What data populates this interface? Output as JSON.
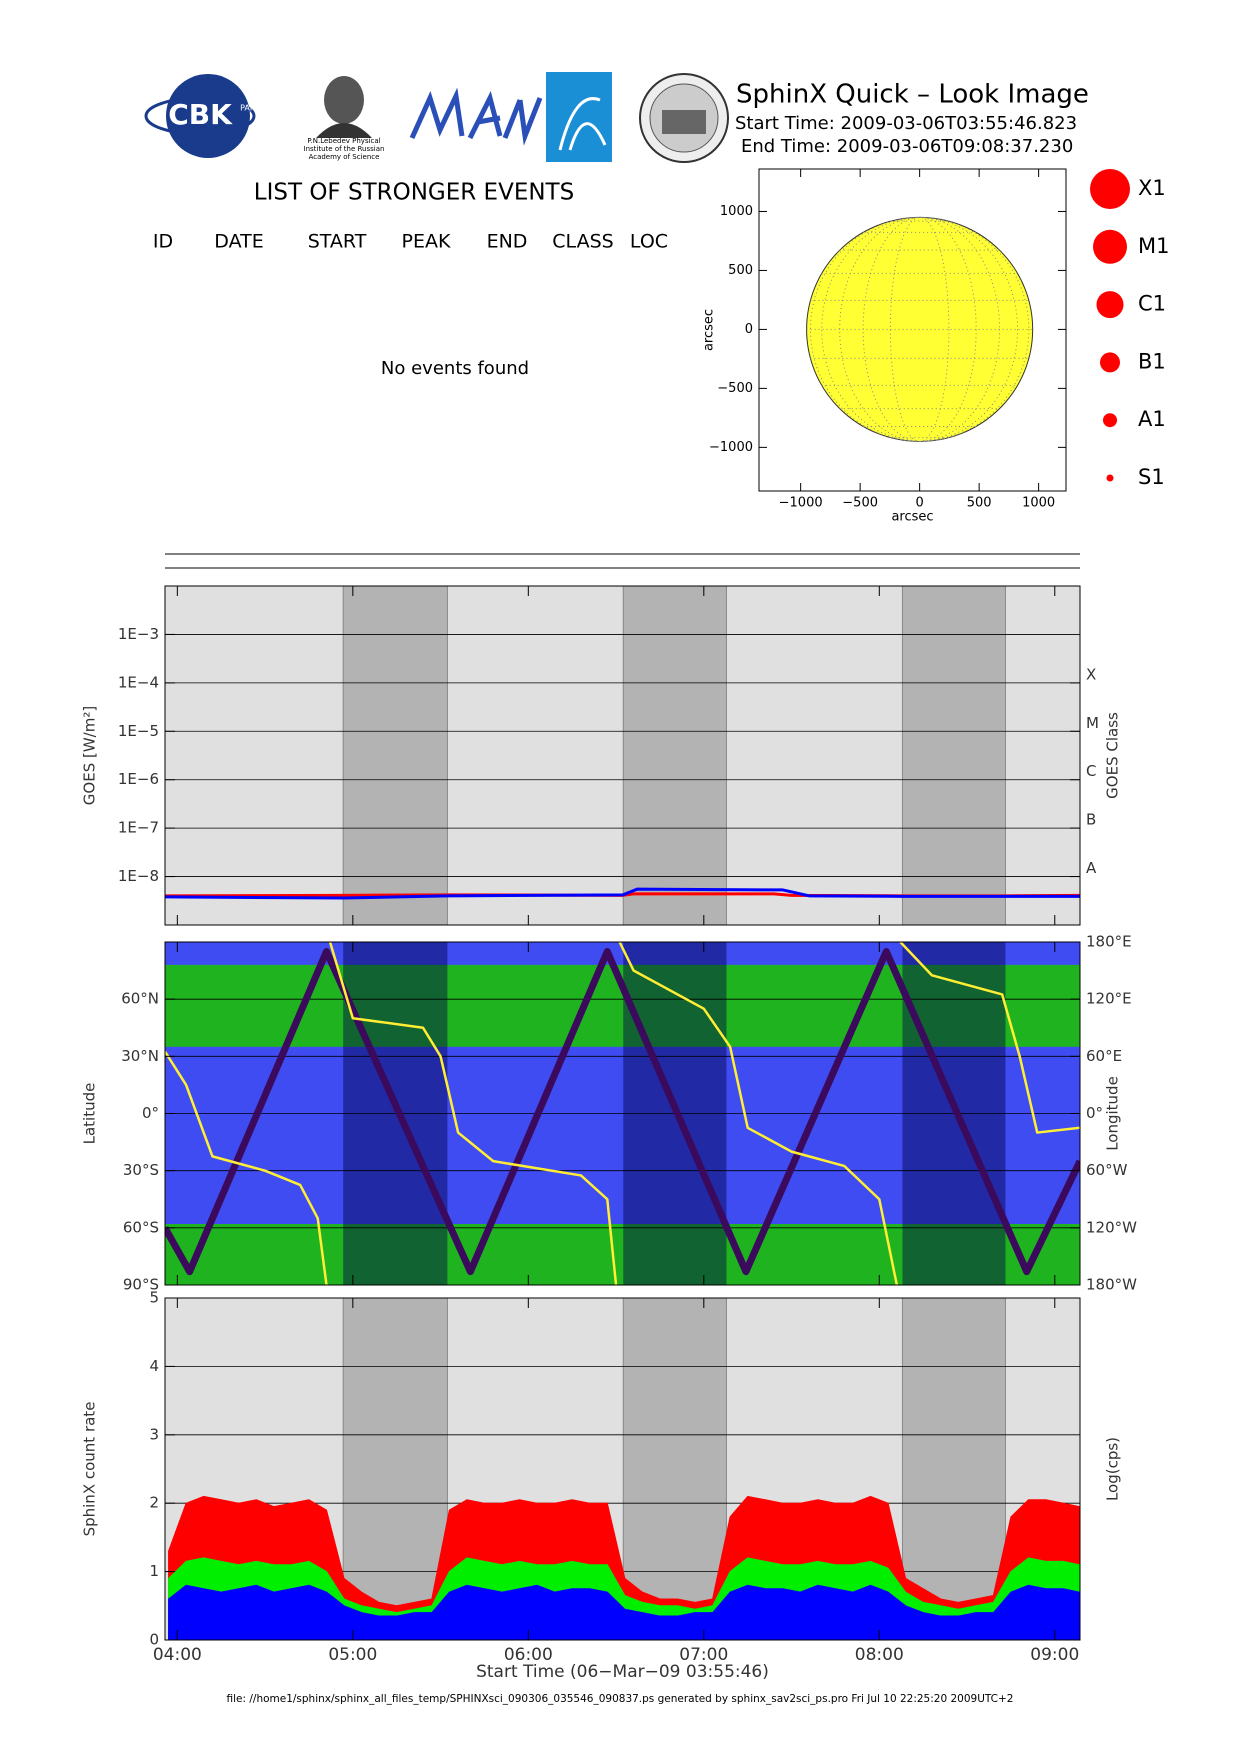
{
  "header": {
    "title": "SphinX Quick – Look Image",
    "start_time": "Start Time: 2009-03-06T03:55:46.823",
    "end_time": "End Time: 2009-03-06T09:08:37.230",
    "logo_cbk": "CBK",
    "logo_cbk_sub": "PAN",
    "logo_lebedev": [
      "P.N.Lebedev Physical",
      "Institute of the Russian",
      "Academy of Science"
    ]
  },
  "events": {
    "title": "LIST OF STRONGER EVENTS",
    "columns": [
      "ID",
      "DATE",
      "START",
      "PEAK",
      "END",
      "CLASS",
      "LOC"
    ],
    "message": "No events found"
  },
  "chart_data": [
    {
      "type": "disk",
      "xlabel": "arcsec",
      "ylabel": "arcsec",
      "xlim": [
        -1350,
        1230
      ],
      "ylim": [
        -1370,
        1360
      ],
      "xticks": [
        {
          "value": -1000,
          "label": "−1000"
        },
        {
          "value": -500,
          "label": "−500"
        },
        0,
        500,
        1000
      ],
      "yticks": [
        {
          "value": -1000,
          "label": "−1000"
        },
        {
          "value": -500,
          "label": "−500"
        },
        0,
        500,
        1000
      ],
      "sun_radius": 950,
      "color": "#ffff33",
      "flare_legend": [
        "X1",
        "M1",
        "C1",
        "B1",
        "A1",
        "S1"
      ],
      "legend_color": "#ff0000"
    },
    {
      "type": "line",
      "log_y": true,
      "ylabel": "GOES [W/m²]",
      "y2label": "GOES Class",
      "xlim": [
        3.9297,
        9.1437
      ],
      "ylim": [
        1e-09,
        0.01
      ],
      "yticks": [
        {
          "value": 0.001,
          "label": "1E−3"
        },
        {
          "value": 0.0001,
          "label": "1E−4"
        },
        {
          "value": 1e-05,
          "label": "1E−5"
        },
        {
          "value": 1e-06,
          "label": "1E−6"
        },
        {
          "value": 1e-07,
          "label": "1E−7"
        },
        {
          "value": 1e-08,
          "label": "1E−8"
        }
      ],
      "y2ticks": [
        {
          "value": 0.0001,
          "label": "X"
        },
        {
          "value": 1e-05,
          "label": "M"
        },
        {
          "value": 1e-06,
          "label": "C"
        },
        {
          "value": 1e-07,
          "label": "B"
        },
        {
          "value": 1e-08,
          "label": "A"
        }
      ],
      "grid": true,
      "background": "#e0e0e0",
      "shade_color": "#b3b3b3",
      "shaded_intervals": [
        [
          4.945,
          5.539
        ],
        [
          6.541,
          7.129
        ],
        [
          8.132,
          8.719
        ]
      ],
      "series": [
        {
          "color": "#ff0000",
          "x": [
            3.9297,
            4.95,
            5.54,
            6.54,
            6.6,
            7.4,
            7.5,
            8.13,
            8.72,
            9.1437
          ],
          "values": [
            4e-09,
            4.1e-09,
            4.2e-09,
            4.1e-09,
            4.4e-09,
            4.4e-09,
            4.1e-09,
            4e-09,
            4e-09,
            4.1e-09
          ]
        },
        {
          "color": "#0000ff",
          "x": [
            3.9297,
            4.95,
            5.54,
            6.54,
            6.62,
            7.45,
            7.6,
            8.13,
            8.72,
            9.1437
          ],
          "values": [
            3.8e-09,
            3.6e-09,
            4e-09,
            4.2e-09,
            5.5e-09,
            5.3e-09,
            4e-09,
            3.9e-09,
            3.9e-09,
            3.9e-09
          ]
        }
      ]
    },
    {
      "type": "trajectory",
      "ylabel": "Latitude",
      "y2label": "Longitude",
      "xlim": [
        3.9297,
        9.1437
      ],
      "ylim": [
        -90,
        90
      ],
      "y2lim": [
        -180,
        180
      ],
      "yticks": [
        {
          "value": 60,
          "label": "60°N"
        },
        {
          "value": 30,
          "label": "30°N"
        },
        {
          "value": 0,
          "label": "0°"
        },
        {
          "value": -30,
          "label": "30°S"
        },
        {
          "value": -60,
          "label": "60°S"
        },
        {
          "value": -90,
          "label": "90°S"
        }
      ],
      "y2ticks": [
        {
          "value": 180,
          "label": "180°E"
        },
        {
          "value": 120,
          "label": "120°E"
        },
        {
          "value": 60,
          "label": "60°E"
        },
        {
          "value": 0,
          "label": "0°"
        },
        {
          "value": -60,
          "label": "60°W"
        },
        {
          "value": -120,
          "label": "120°W"
        },
        {
          "value": -180,
          "label": "180°W"
        }
      ],
      "grid": true,
      "background": "#3f4cf2",
      "shade_color": "rgba(0,0,70,0.45)",
      "shaded_intervals": [
        [
          4.945,
          5.539
        ],
        [
          6.541,
          7.129
        ],
        [
          8.132,
          8.719
        ]
      ],
      "series": [
        {
          "color": "#3c0a5c",
          "x": [
            3.9297,
            4.07,
            4.85,
            5.67,
            6.45,
            7.24,
            8.04,
            8.84,
            9.1437
          ],
          "values": [
            -60,
            -83,
            85,
            -83,
            85,
            -83,
            85,
            -83,
            -25
          ]
        },
        {
          "color": "#ffee33",
          "axis": "y2",
          "x": [
            3.9297,
            4.05,
            4.2,
            4.5,
            4.7,
            4.8,
            4.85,
            4.85,
            4.87,
            5.0,
            5.4,
            5.5,
            5.6,
            5.8,
            6.3,
            6.45,
            6.5,
            6.5,
            6.52,
            6.6,
            7.0,
            7.15,
            7.25,
            7.5,
            7.8,
            8.0,
            8.1,
            8.1,
            8.12,
            8.3,
            8.7,
            8.8,
            8.9,
            9.1437
          ],
          "values": [
            65,
            30,
            -45,
            -60,
            -75,
            -110,
            -180,
            null,
            180,
            100,
            90,
            60,
            -20,
            -50,
            -65,
            -90,
            -180,
            null,
            180,
            150,
            110,
            70,
            -15,
            -40,
            -55,
            -90,
            -180,
            null,
            180,
            145,
            125,
            60,
            -20,
            -15
          ]
        }
      ]
    },
    {
      "type": "area",
      "ylabel": "SphinX count rate",
      "y2label": "Log(cps)",
      "xlabel": "Start Time (06−Mar−09 03:55:46)",
      "xlim": [
        3.9297,
        9.1437
      ],
      "ylim": [
        0,
        5
      ],
      "yticks": [
        0,
        1,
        2,
        3,
        4,
        5
      ],
      "xticks": [
        {
          "value": 4,
          "label": "04:00"
        },
        {
          "value": 5,
          "label": "05:00"
        },
        {
          "value": 6,
          "label": "06:00"
        },
        {
          "value": 7,
          "label": "07:00"
        },
        {
          "value": 8,
          "label": "08:00"
        },
        {
          "value": 9,
          "label": "09:00"
        }
      ],
      "grid": true,
      "background": "#e0e0e0",
      "shade_color": "#b3b3b3",
      "shaded_intervals": [
        [
          4.945,
          5.539
        ],
        [
          6.541,
          7.129
        ],
        [
          8.132,
          8.719
        ]
      ],
      "x": [
        3.95,
        4.05,
        4.15,
        4.25,
        4.35,
        4.45,
        4.55,
        4.65,
        4.75,
        4.85,
        4.95,
        5.05,
        5.15,
        5.25,
        5.35,
        5.45,
        5.55,
        5.65,
        5.75,
        5.85,
        5.95,
        6.05,
        6.15,
        6.25,
        6.35,
        6.45,
        6.55,
        6.65,
        6.75,
        6.85,
        6.95,
        7.05,
        7.15,
        7.25,
        7.35,
        7.45,
        7.55,
        7.65,
        7.75,
        7.85,
        7.95,
        8.05,
        8.15,
        8.25,
        8.35,
        8.45,
        8.55,
        8.65,
        8.75,
        8.85,
        8.95,
        9.05,
        9.14
      ],
      "series": [
        {
          "color": "#ff0000",
          "values": [
            1.3,
            2.0,
            2.1,
            2.05,
            2.0,
            2.05,
            1.95,
            2.0,
            2.05,
            1.9,
            0.9,
            0.7,
            0.55,
            0.5,
            0.55,
            0.6,
            1.9,
            2.05,
            2.0,
            2.0,
            2.05,
            2.0,
            2.0,
            2.05,
            2.0,
            2.0,
            0.9,
            0.7,
            0.6,
            0.6,
            0.55,
            0.6,
            1.8,
            2.1,
            2.05,
            2.0,
            2.0,
            2.05,
            2.0,
            2.0,
            2.1,
            2.0,
            0.9,
            0.75,
            0.6,
            0.55,
            0.6,
            0.65,
            1.8,
            2.05,
            2.05,
            2.0,
            1.95
          ]
        },
        {
          "color": "#00ee00",
          "values": [
            0.9,
            1.15,
            1.2,
            1.15,
            1.1,
            1.15,
            1.1,
            1.1,
            1.15,
            1.0,
            0.6,
            0.5,
            0.45,
            0.4,
            0.45,
            0.5,
            1.0,
            1.2,
            1.15,
            1.1,
            1.15,
            1.1,
            1.1,
            1.15,
            1.1,
            1.1,
            0.65,
            0.55,
            0.5,
            0.5,
            0.45,
            0.5,
            1.0,
            1.2,
            1.15,
            1.1,
            1.1,
            1.15,
            1.1,
            1.1,
            1.15,
            1.05,
            0.7,
            0.55,
            0.5,
            0.45,
            0.5,
            0.55,
            1.0,
            1.2,
            1.15,
            1.15,
            1.1
          ]
        },
        {
          "color": "#0000ff",
          "values": [
            0.6,
            0.8,
            0.75,
            0.7,
            0.75,
            0.8,
            0.7,
            0.75,
            0.8,
            0.7,
            0.5,
            0.4,
            0.35,
            0.35,
            0.4,
            0.4,
            0.7,
            0.8,
            0.75,
            0.7,
            0.75,
            0.8,
            0.7,
            0.75,
            0.75,
            0.7,
            0.45,
            0.4,
            0.35,
            0.35,
            0.4,
            0.4,
            0.7,
            0.8,
            0.75,
            0.75,
            0.7,
            0.8,
            0.75,
            0.7,
            0.8,
            0.7,
            0.5,
            0.4,
            0.35,
            0.35,
            0.4,
            0.4,
            0.7,
            0.8,
            0.75,
            0.75,
            0.7
          ]
        }
      ]
    }
  ],
  "footer": "file: //home1/sphinx/sphinx_all_files_temp/SPHINXsci_090306_035546_090837.ps generated by sphinx_sav2sci_ps.pro Fri Jul 10 22:25:20 2009UTC+2"
}
